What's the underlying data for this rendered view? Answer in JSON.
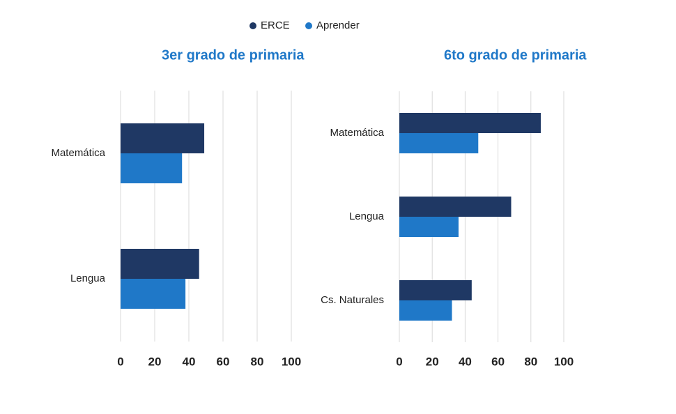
{
  "chart_data": [
    {
      "type": "bar",
      "orientation": "horizontal",
      "title": "3er grado de primaria",
      "categories": [
        "Matemática",
        "Lengua"
      ],
      "series": [
        {
          "name": "ERCE",
          "color": "#1f3864",
          "values": [
            49,
            46
          ]
        },
        {
          "name": "Aprender",
          "color": "#1f78c8",
          "values": [
            36,
            38
          ]
        }
      ],
      "xlim": [
        0,
        100
      ],
      "xticks": [
        0,
        20,
        40,
        60,
        80,
        100
      ],
      "grid": true
    },
    {
      "type": "bar",
      "orientation": "horizontal",
      "title": "6to grado de primaria",
      "categories": [
        "Matemática",
        "Lengua",
        "Cs. Naturales"
      ],
      "series": [
        {
          "color": "#1f3864",
          "values": [
            86,
            68,
            44
          ]
        },
        {
          "color": "#1f78c8",
          "values": [
            48,
            36,
            32
          ]
        }
      ],
      "xlim": [
        0,
        100
      ],
      "xticks": [
        0,
        20,
        40,
        60,
        80,
        100
      ],
      "grid": true
    }
  ]
}
